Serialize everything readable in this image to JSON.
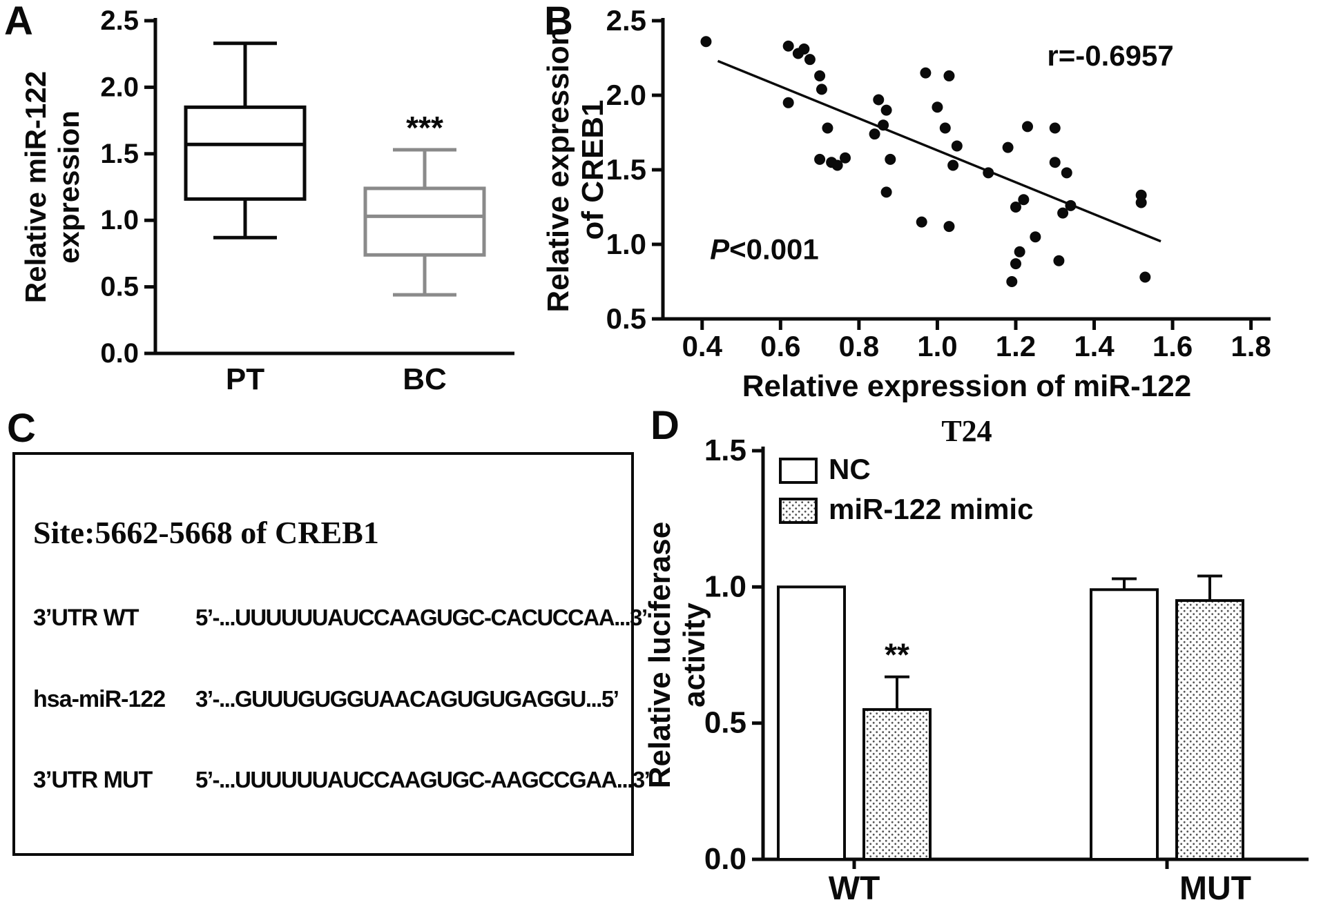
{
  "panels": {
    "a": {
      "letter": "A"
    },
    "b": {
      "letter": "B"
    },
    "c": {
      "letter": "C"
    },
    "d": {
      "letter": "D"
    }
  },
  "colors": {
    "ink": "#0a0a0a",
    "gray_series": "#8a8a8a"
  },
  "sequence_panel": {
    "title": "Site:5662-5668 of CREB1",
    "rows": [
      {
        "label": "3’UTR WT",
        "sequence": "5’-...UUUUUUAUCCAAGUGC-CACUCCAA...3’"
      },
      {
        "label": "hsa-miR-122",
        "sequence": "3’-...GUUUGUGGUAACAGUGUGAGGU...5’"
      },
      {
        "label": "3’UTR MUT",
        "sequence": "5’-...UUUUUUAUCCAAGUGC-AAGCCGAA...3’"
      }
    ]
  },
  "chart_data": [
    {
      "id": "panelA",
      "type": "boxplot",
      "ylabel_lines": [
        "Relative miR-122",
        "expression"
      ],
      "ylim": [
        0,
        2.5
      ],
      "yticks": [
        0.0,
        0.5,
        1.0,
        1.5,
        2.0,
        2.5
      ],
      "categories": [
        "PT",
        "BC"
      ],
      "boxes": [
        {
          "category": "PT",
          "min": 0.87,
          "q1": 1.16,
          "median": 1.57,
          "q3": 1.85,
          "max": 2.33,
          "color": "#0a0a0a",
          "annotation": ""
        },
        {
          "category": "BC",
          "min": 0.44,
          "q1": 0.74,
          "median": 1.03,
          "q3": 1.24,
          "max": 1.53,
          "color": "#8a8a8a",
          "annotation": "***"
        }
      ]
    },
    {
      "id": "panelB",
      "type": "scatter",
      "xlabel": "Relative expression of miR-122",
      "ylabel_lines": [
        "Relative expression",
        "of CREB1"
      ],
      "xlim": [
        0.3,
        1.85
      ],
      "ylim": [
        0.5,
        2.5
      ],
      "xticks": [
        0.4,
        0.6,
        0.8,
        1.0,
        1.2,
        1.4,
        1.6,
        1.8
      ],
      "yticks": [
        0.5,
        1.0,
        1.5,
        2.0,
        2.5
      ],
      "points": [
        [
          0.41,
          2.36
        ],
        [
          0.62,
          2.33
        ],
        [
          0.645,
          2.28
        ],
        [
          0.66,
          2.31
        ],
        [
          0.675,
          2.24
        ],
        [
          0.7,
          2.13
        ],
        [
          0.705,
          2.04
        ],
        [
          0.62,
          1.95
        ],
        [
          0.72,
          1.78
        ],
        [
          0.7,
          1.57
        ],
        [
          0.73,
          1.55
        ],
        [
          0.765,
          1.58
        ],
        [
          0.745,
          1.53
        ],
        [
          0.85,
          1.97
        ],
        [
          0.87,
          1.9
        ],
        [
          0.862,
          1.8
        ],
        [
          0.84,
          1.74
        ],
        [
          0.88,
          1.57
        ],
        [
          0.87,
          1.35
        ],
        [
          0.97,
          2.15
        ],
        [
          1.03,
          2.13
        ],
        [
          1.0,
          1.92
        ],
        [
          1.02,
          1.78
        ],
        [
          1.05,
          1.66
        ],
        [
          1.04,
          1.53
        ],
        [
          0.96,
          1.15
        ],
        [
          1.03,
          1.12
        ],
        [
          1.13,
          1.48
        ],
        [
          1.18,
          1.65
        ],
        [
          1.23,
          1.79
        ],
        [
          1.3,
          1.78
        ],
        [
          1.2,
          1.25
        ],
        [
          1.22,
          1.3
        ],
        [
          1.25,
          1.05
        ],
        [
          1.21,
          0.95
        ],
        [
          1.2,
          0.87
        ],
        [
          1.19,
          0.75
        ],
        [
          1.3,
          1.55
        ],
        [
          1.33,
          1.48
        ],
        [
          1.32,
          1.21
        ],
        [
          1.34,
          1.26
        ],
        [
          1.31,
          0.89
        ],
        [
          1.52,
          1.33
        ],
        [
          1.52,
          1.28
        ],
        [
          1.53,
          0.78
        ]
      ],
      "regression_line": {
        "x1": 0.44,
        "y1": 2.23,
        "x2": 1.57,
        "y2": 1.02
      },
      "annotations": [
        {
          "text": "r=-0.6957",
          "x": 1.28,
          "y": 2.2,
          "style": "plain"
        },
        {
          "text": "P<0.001",
          "x": 0.42,
          "y": 0.9,
          "style": "italic-first-char"
        }
      ]
    },
    {
      "id": "panelD",
      "type": "grouped_bar",
      "title": "T24",
      "ylabel_lines": [
        "Relative luciferase",
        "activity"
      ],
      "ylim": [
        0,
        1.5
      ],
      "yticks": [
        0.0,
        0.5,
        1.0,
        1.5
      ],
      "categories": [
        "WT",
        "MUT"
      ],
      "series": [
        {
          "name": "NC",
          "fill": "white",
          "values": [
            1.0,
            0.99
          ],
          "errors": [
            0.0,
            0.04
          ]
        },
        {
          "name": "miR-122 mimic",
          "fill": "dots",
          "values": [
            0.55,
            0.95
          ],
          "errors": [
            0.12,
            0.09
          ]
        }
      ],
      "annotations": [
        {
          "text": "**",
          "category": "WT",
          "series": "miR-122 mimic"
        }
      ],
      "legend_position": "top-left"
    }
  ]
}
